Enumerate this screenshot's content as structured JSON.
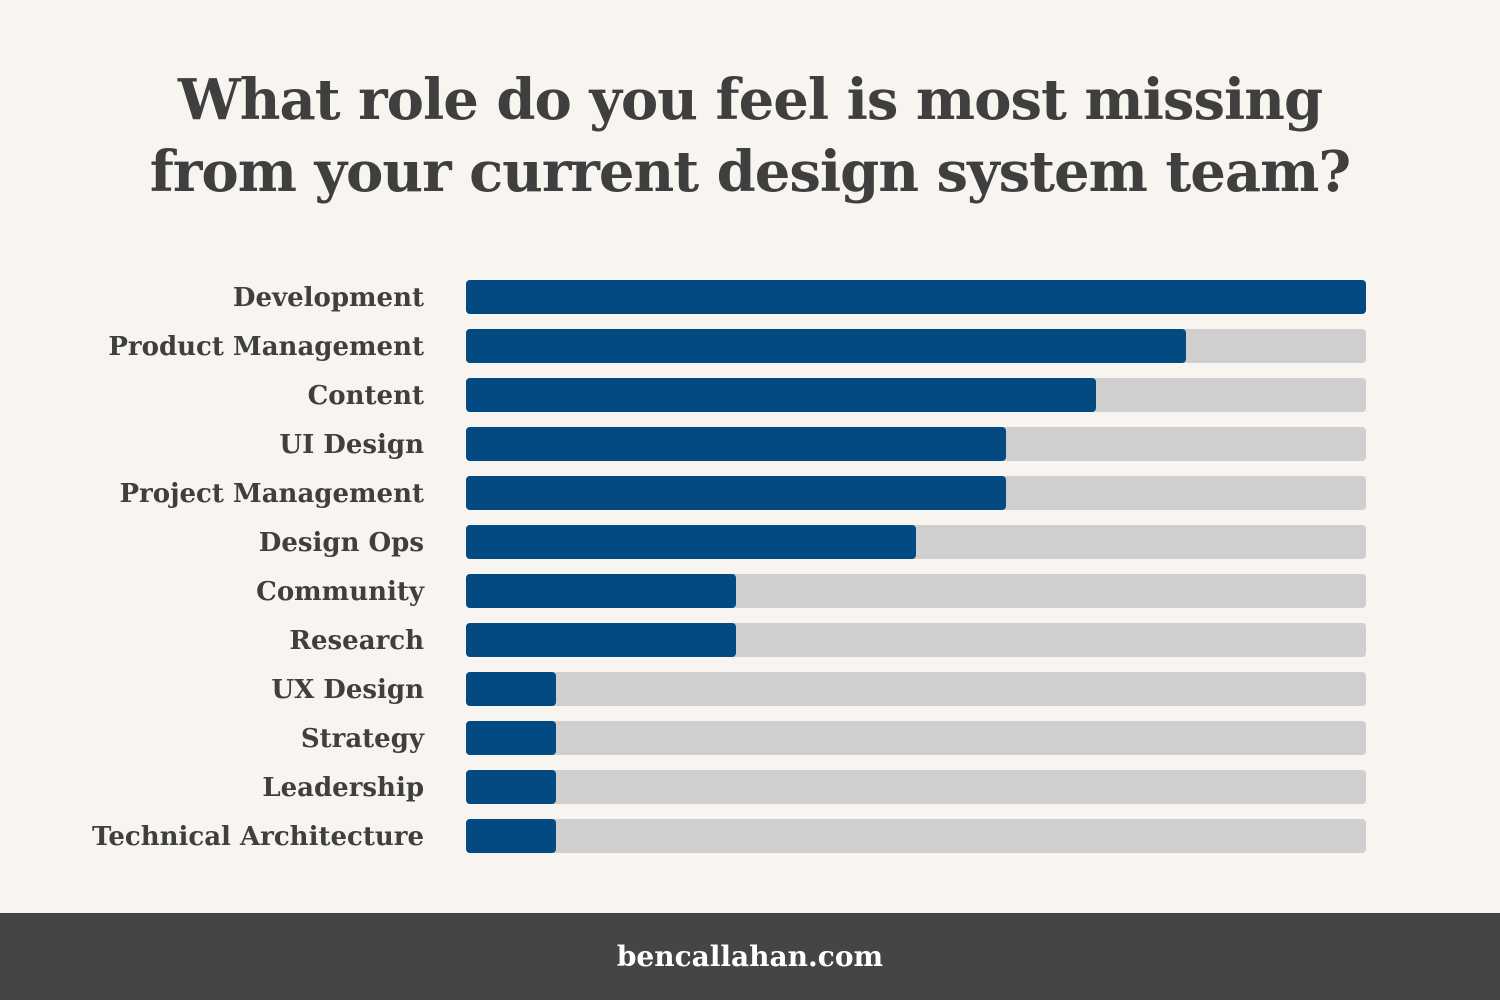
{
  "title_lines": [
    "What role do you feel is most missing",
    "from your current design system team?"
  ],
  "footer_text": "bencallahan.com",
  "colors": {
    "background": "#f8f4f0",
    "bar": "#034a82",
    "track": "#cfcfcf",
    "text": "#3f3f3f",
    "footer": "#454545"
  },
  "chart_data": {
    "type": "bar",
    "orientation": "horizontal",
    "title": "What role do you feel is most missing from your current design system team?",
    "categories": [
      "Development",
      "Product Management",
      "Content",
      "UI Design",
      "Project Management",
      "Design Ops",
      "Community",
      "Research",
      "UX Design",
      "Strategy",
      "Leadership",
      "Technical Architecture"
    ],
    "values": [
      10,
      8,
      7,
      6,
      6,
      5,
      3,
      3,
      1,
      1,
      1,
      1
    ],
    "xlim": [
      0,
      10
    ],
    "grid": false,
    "legend": "none"
  }
}
